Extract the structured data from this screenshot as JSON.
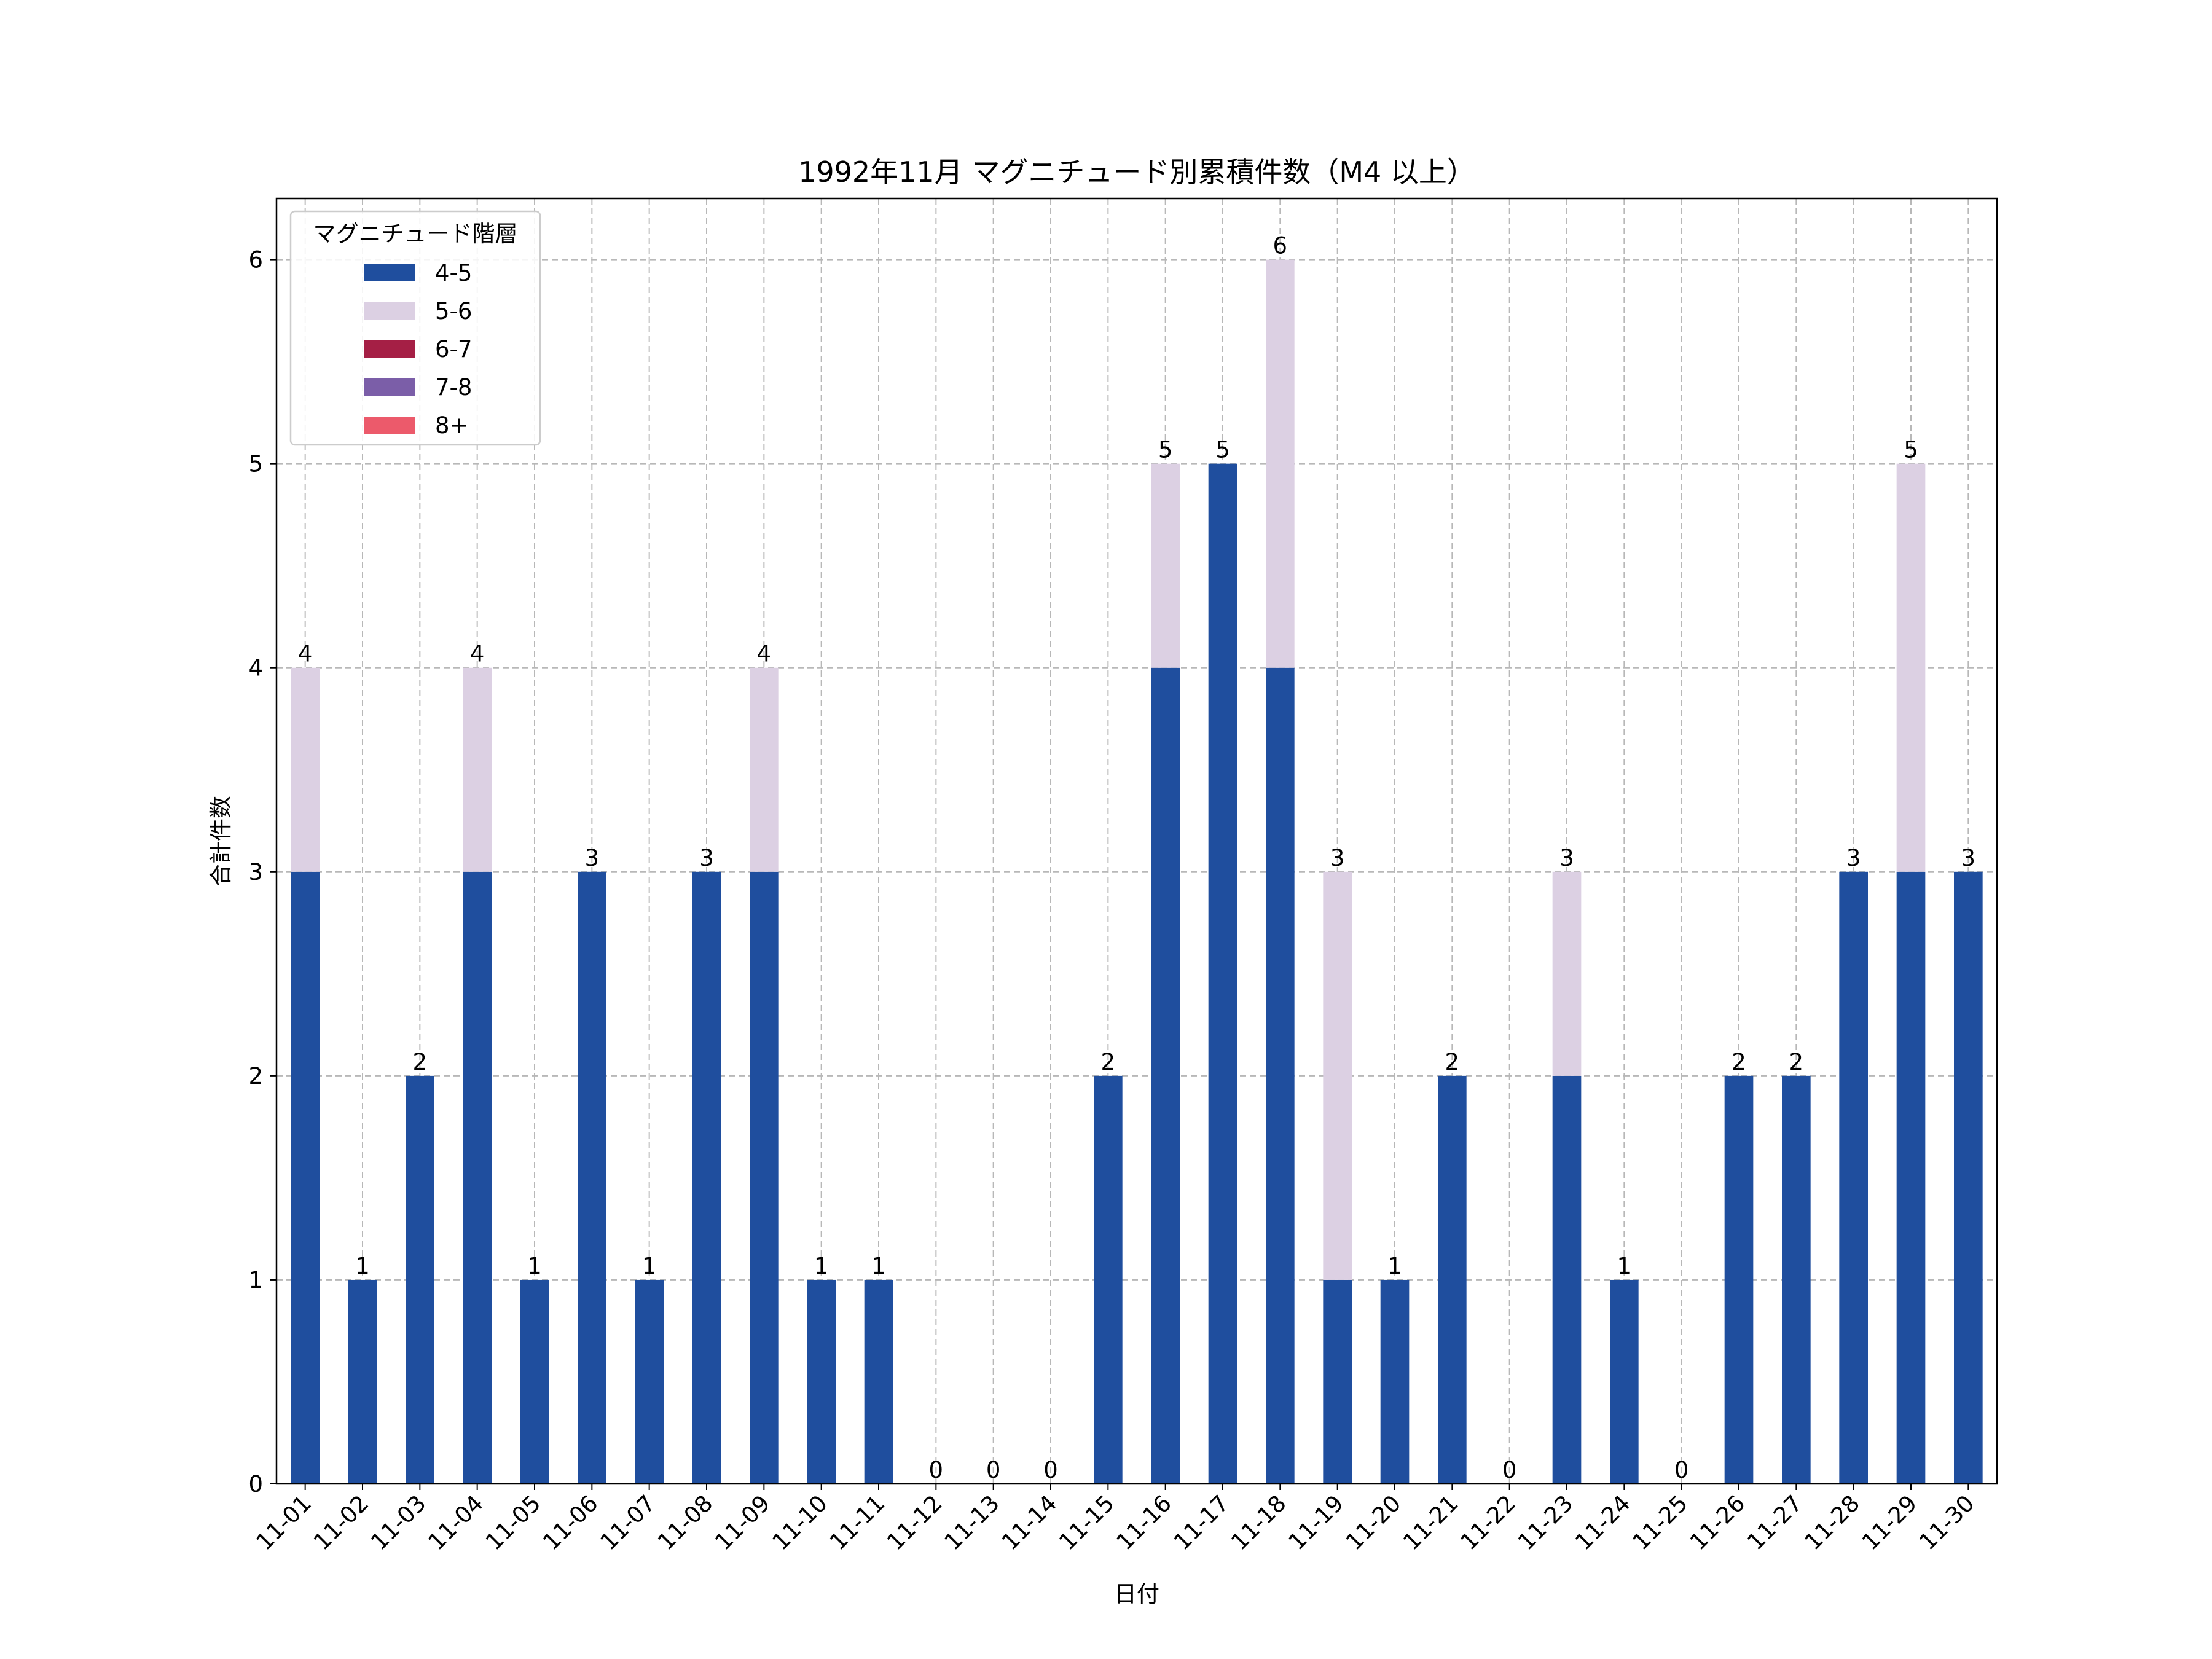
{
  "chart_data": {
    "type": "bar",
    "stacked": true,
    "title": "1992年11月 マグニチュード別累積件数（M4 以上）",
    "xlabel": "日付",
    "ylabel": "合計件数",
    "ylim": [
      0,
      6.3
    ],
    "yticks": [
      0,
      1,
      2,
      3,
      4,
      5,
      6
    ],
    "grid": true,
    "legend": {
      "title": "マグニチュード階層",
      "placement": "top-left"
    },
    "categories": [
      "11-01",
      "11-02",
      "11-03",
      "11-04",
      "11-05",
      "11-06",
      "11-07",
      "11-08",
      "11-09",
      "11-10",
      "11-11",
      "11-12",
      "11-13",
      "11-14",
      "11-15",
      "11-16",
      "11-17",
      "11-18",
      "11-19",
      "11-20",
      "11-21",
      "11-22",
      "11-23",
      "11-24",
      "11-25",
      "11-26",
      "11-27",
      "11-28",
      "11-29",
      "11-30"
    ],
    "series": [
      {
        "name": "4-5",
        "color": "#1f4e9e",
        "values": [
          3,
          1,
          2,
          3,
          1,
          3,
          1,
          3,
          3,
          1,
          1,
          0,
          0,
          0,
          2,
          4,
          5,
          4,
          1,
          1,
          2,
          0,
          2,
          1,
          0,
          2,
          2,
          3,
          3,
          3
        ]
      },
      {
        "name": "5-6",
        "color": "#dcd0e3",
        "values": [
          1,
          0,
          0,
          1,
          0,
          0,
          0,
          0,
          1,
          0,
          0,
          0,
          0,
          0,
          0,
          1,
          0,
          2,
          2,
          0,
          0,
          0,
          1,
          0,
          0,
          0,
          0,
          0,
          2,
          0
        ]
      },
      {
        "name": "6-7",
        "color": "#a51f45",
        "values": [
          0,
          0,
          0,
          0,
          0,
          0,
          0,
          0,
          0,
          0,
          0,
          0,
          0,
          0,
          0,
          0,
          0,
          0,
          0,
          0,
          0,
          0,
          0,
          0,
          0,
          0,
          0,
          0,
          0,
          0
        ]
      },
      {
        "name": "7-8",
        "color": "#7b5ea8",
        "values": [
          0,
          0,
          0,
          0,
          0,
          0,
          0,
          0,
          0,
          0,
          0,
          0,
          0,
          0,
          0,
          0,
          0,
          0,
          0,
          0,
          0,
          0,
          0,
          0,
          0,
          0,
          0,
          0,
          0,
          0
        ]
      },
      {
        "name": "8+",
        "color": "#ec5a6b",
        "values": [
          0,
          0,
          0,
          0,
          0,
          0,
          0,
          0,
          0,
          0,
          0,
          0,
          0,
          0,
          0,
          0,
          0,
          0,
          0,
          0,
          0,
          0,
          0,
          0,
          0,
          0,
          0,
          0,
          0,
          0
        ]
      }
    ],
    "totals": [
      4,
      1,
      2,
      4,
      1,
      3,
      1,
      3,
      4,
      1,
      1,
      0,
      0,
      0,
      2,
      5,
      5,
      6,
      3,
      1,
      2,
      0,
      3,
      1,
      0,
      2,
      2,
      3,
      5,
      3
    ]
  }
}
